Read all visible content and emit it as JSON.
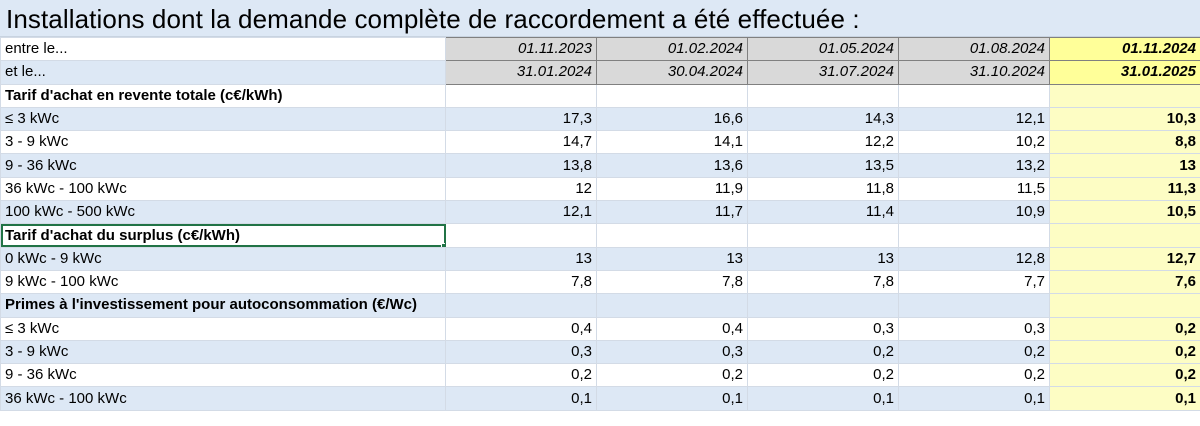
{
  "title": "Installations dont la demande complète de raccordement a été effectuée :",
  "period_rows": [
    {
      "label": "entre le...",
      "dates": [
        "01.11.2023",
        "01.02.2024",
        "01.05.2024",
        "01.08.2024",
        "01.11.2024"
      ]
    },
    {
      "label": "et le...",
      "dates": [
        "31.01.2024",
        "30.04.2024",
        "31.07.2024",
        "31.10.2024",
        "31.01.2025"
      ]
    }
  ],
  "sections": [
    {
      "title": "Tarif d'achat en revente totale (c€/kWh)",
      "rows": [
        {
          "label": "≤ 3 kWc",
          "values": [
            "17,3",
            "16,6",
            "14,3",
            "12,1",
            "10,3"
          ]
        },
        {
          "label": "3  - 9 kWc",
          "values": [
            "14,7",
            "14,1",
            "12,2",
            "10,2",
            "8,8"
          ]
        },
        {
          "label": "9 - 36 kWc",
          "values": [
            "13,8",
            "13,6",
            "13,5",
            "13,2",
            "13"
          ]
        },
        {
          "label": "36 kWc - 100 kWc",
          "values": [
            "12",
            "11,9",
            "11,8",
            "11,5",
            "11,3"
          ]
        },
        {
          "label": "100 kWc - 500 kWc",
          "values": [
            "12,1",
            "11,7",
            "11,4",
            "10,9",
            "10,5"
          ]
        }
      ]
    },
    {
      "title": "Tarif d'achat du surplus (c€/kWh)",
      "rows": [
        {
          "label": "0 kWc - 9 kWc",
          "values": [
            "13",
            "13",
            "13",
            "12,8",
            "12,7"
          ]
        },
        {
          "label": "9 kWc - 100 kWc",
          "values": [
            "7,8",
            "7,8",
            "7,8",
            "7,7",
            "7,6"
          ]
        }
      ]
    },
    {
      "title": "Primes à l'investissement pour autoconsommation (€/Wc)",
      "rows": [
        {
          "label": "≤ 3 kWc",
          "values": [
            "0,4",
            "0,4",
            "0,3",
            "0,3",
            "0,2"
          ]
        },
        {
          "label": "3  - 9 kWc",
          "values": [
            "0,3",
            "0,3",
            "0,2",
            "0,2",
            "0,2"
          ]
        },
        {
          "label": "9 - 36 kWc",
          "values": [
            "0,2",
            "0,2",
            "0,2",
            "0,2",
            "0,2"
          ]
        },
        {
          "label": "36 kWc - 100 kWc",
          "values": [
            "0,1",
            "0,1",
            "0,1",
            "0,1",
            "0,1"
          ]
        }
      ]
    }
  ],
  "colors": {
    "row_blue": "#dde8f5",
    "highlight_yellow": "#fdfdc4",
    "header_gray": "#d9d9d9",
    "selection_green": "#217346"
  }
}
